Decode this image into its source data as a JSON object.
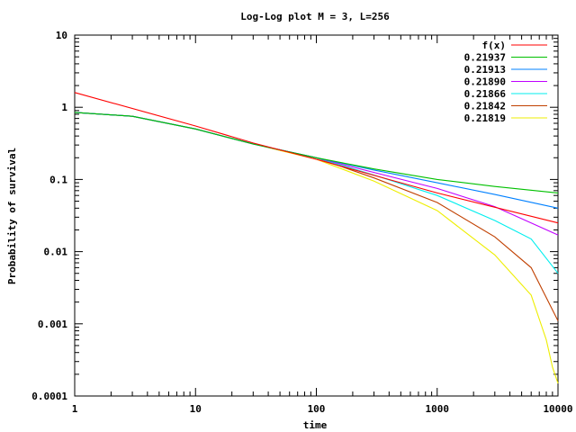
{
  "chart_data": {
    "type": "line",
    "title": "Log-Log plot M = 3, L=256",
    "xlabel": "time",
    "ylabel": "Probability of survival",
    "x_scale": "log",
    "y_scale": "log",
    "xlim": [
      1,
      10000
    ],
    "ylim": [
      0.0001,
      10
    ],
    "x_ticks": [
      {
        "value": 1,
        "label": "1"
      },
      {
        "value": 10,
        "label": "10"
      },
      {
        "value": 100,
        "label": "100"
      },
      {
        "value": 1000,
        "label": "1000"
      },
      {
        "value": 10000,
        "label": "10000"
      }
    ],
    "y_ticks": [
      {
        "value": 0.0001,
        "label": "0.0001"
      },
      {
        "value": 0.001,
        "label": "0.001"
      },
      {
        "value": 0.01,
        "label": "0.01"
      },
      {
        "value": 0.1,
        "label": "0.1"
      },
      {
        "value": 1,
        "label": "1"
      },
      {
        "value": 10,
        "label": "10"
      }
    ],
    "grid": false,
    "legend_position": "top-right",
    "series": [
      {
        "name": "f(x)",
        "color": "#ff0000",
        "points": [
          [
            1,
            1.6
          ],
          [
            10,
            0.55
          ],
          [
            30,
            0.32
          ],
          [
            100,
            0.19
          ],
          [
            1000,
            0.065
          ],
          [
            10000,
            0.025
          ]
        ]
      },
      {
        "name": "0.21937",
        "color": "#00c000",
        "points": [
          [
            1,
            0.85
          ],
          [
            3,
            0.75
          ],
          [
            10,
            0.5
          ],
          [
            30,
            0.31
          ],
          [
            100,
            0.2
          ],
          [
            300,
            0.14
          ],
          [
            1000,
            0.1
          ],
          [
            3000,
            0.08
          ],
          [
            10000,
            0.065
          ]
        ]
      },
      {
        "name": "0.21913",
        "color": "#0080ff",
        "points": [
          [
            1,
            0.85
          ],
          [
            3,
            0.75
          ],
          [
            10,
            0.5
          ],
          [
            30,
            0.31
          ],
          [
            100,
            0.2
          ],
          [
            300,
            0.135
          ],
          [
            1000,
            0.09
          ],
          [
            3000,
            0.062
          ],
          [
            10000,
            0.04
          ]
        ]
      },
      {
        "name": "0.21890",
        "color": "#c000ff",
        "points": [
          [
            1,
            0.85
          ],
          [
            3,
            0.75
          ],
          [
            10,
            0.5
          ],
          [
            30,
            0.31
          ],
          [
            100,
            0.2
          ],
          [
            300,
            0.125
          ],
          [
            1000,
            0.075
          ],
          [
            3000,
            0.042
          ],
          [
            10000,
            0.017
          ]
        ]
      },
      {
        "name": "0.21866",
        "color": "#00eeee",
        "points": [
          [
            1,
            0.85
          ],
          [
            3,
            0.75
          ],
          [
            10,
            0.5
          ],
          [
            30,
            0.31
          ],
          [
            100,
            0.2
          ],
          [
            300,
            0.115
          ],
          [
            1000,
            0.06
          ],
          [
            3000,
            0.027
          ],
          [
            6000,
            0.015
          ],
          [
            10000,
            0.005
          ]
        ]
      },
      {
        "name": "0.21842",
        "color": "#c04000",
        "points": [
          [
            1,
            0.85
          ],
          [
            3,
            0.75
          ],
          [
            10,
            0.5
          ],
          [
            30,
            0.31
          ],
          [
            100,
            0.2
          ],
          [
            300,
            0.105
          ],
          [
            1000,
            0.048
          ],
          [
            3000,
            0.016
          ],
          [
            6000,
            0.006
          ],
          [
            10000,
            0.0011
          ]
        ]
      },
      {
        "name": "0.21819",
        "color": "#eeee00",
        "points": [
          [
            1,
            0.85
          ],
          [
            3,
            0.75
          ],
          [
            10,
            0.5
          ],
          [
            30,
            0.31
          ],
          [
            100,
            0.19
          ],
          [
            300,
            0.095
          ],
          [
            1000,
            0.037
          ],
          [
            3000,
            0.009
          ],
          [
            6000,
            0.0025
          ],
          [
            8000,
            0.0006
          ],
          [
            9000,
            0.00025
          ],
          [
            10000,
            0.00015
          ]
        ]
      }
    ]
  }
}
